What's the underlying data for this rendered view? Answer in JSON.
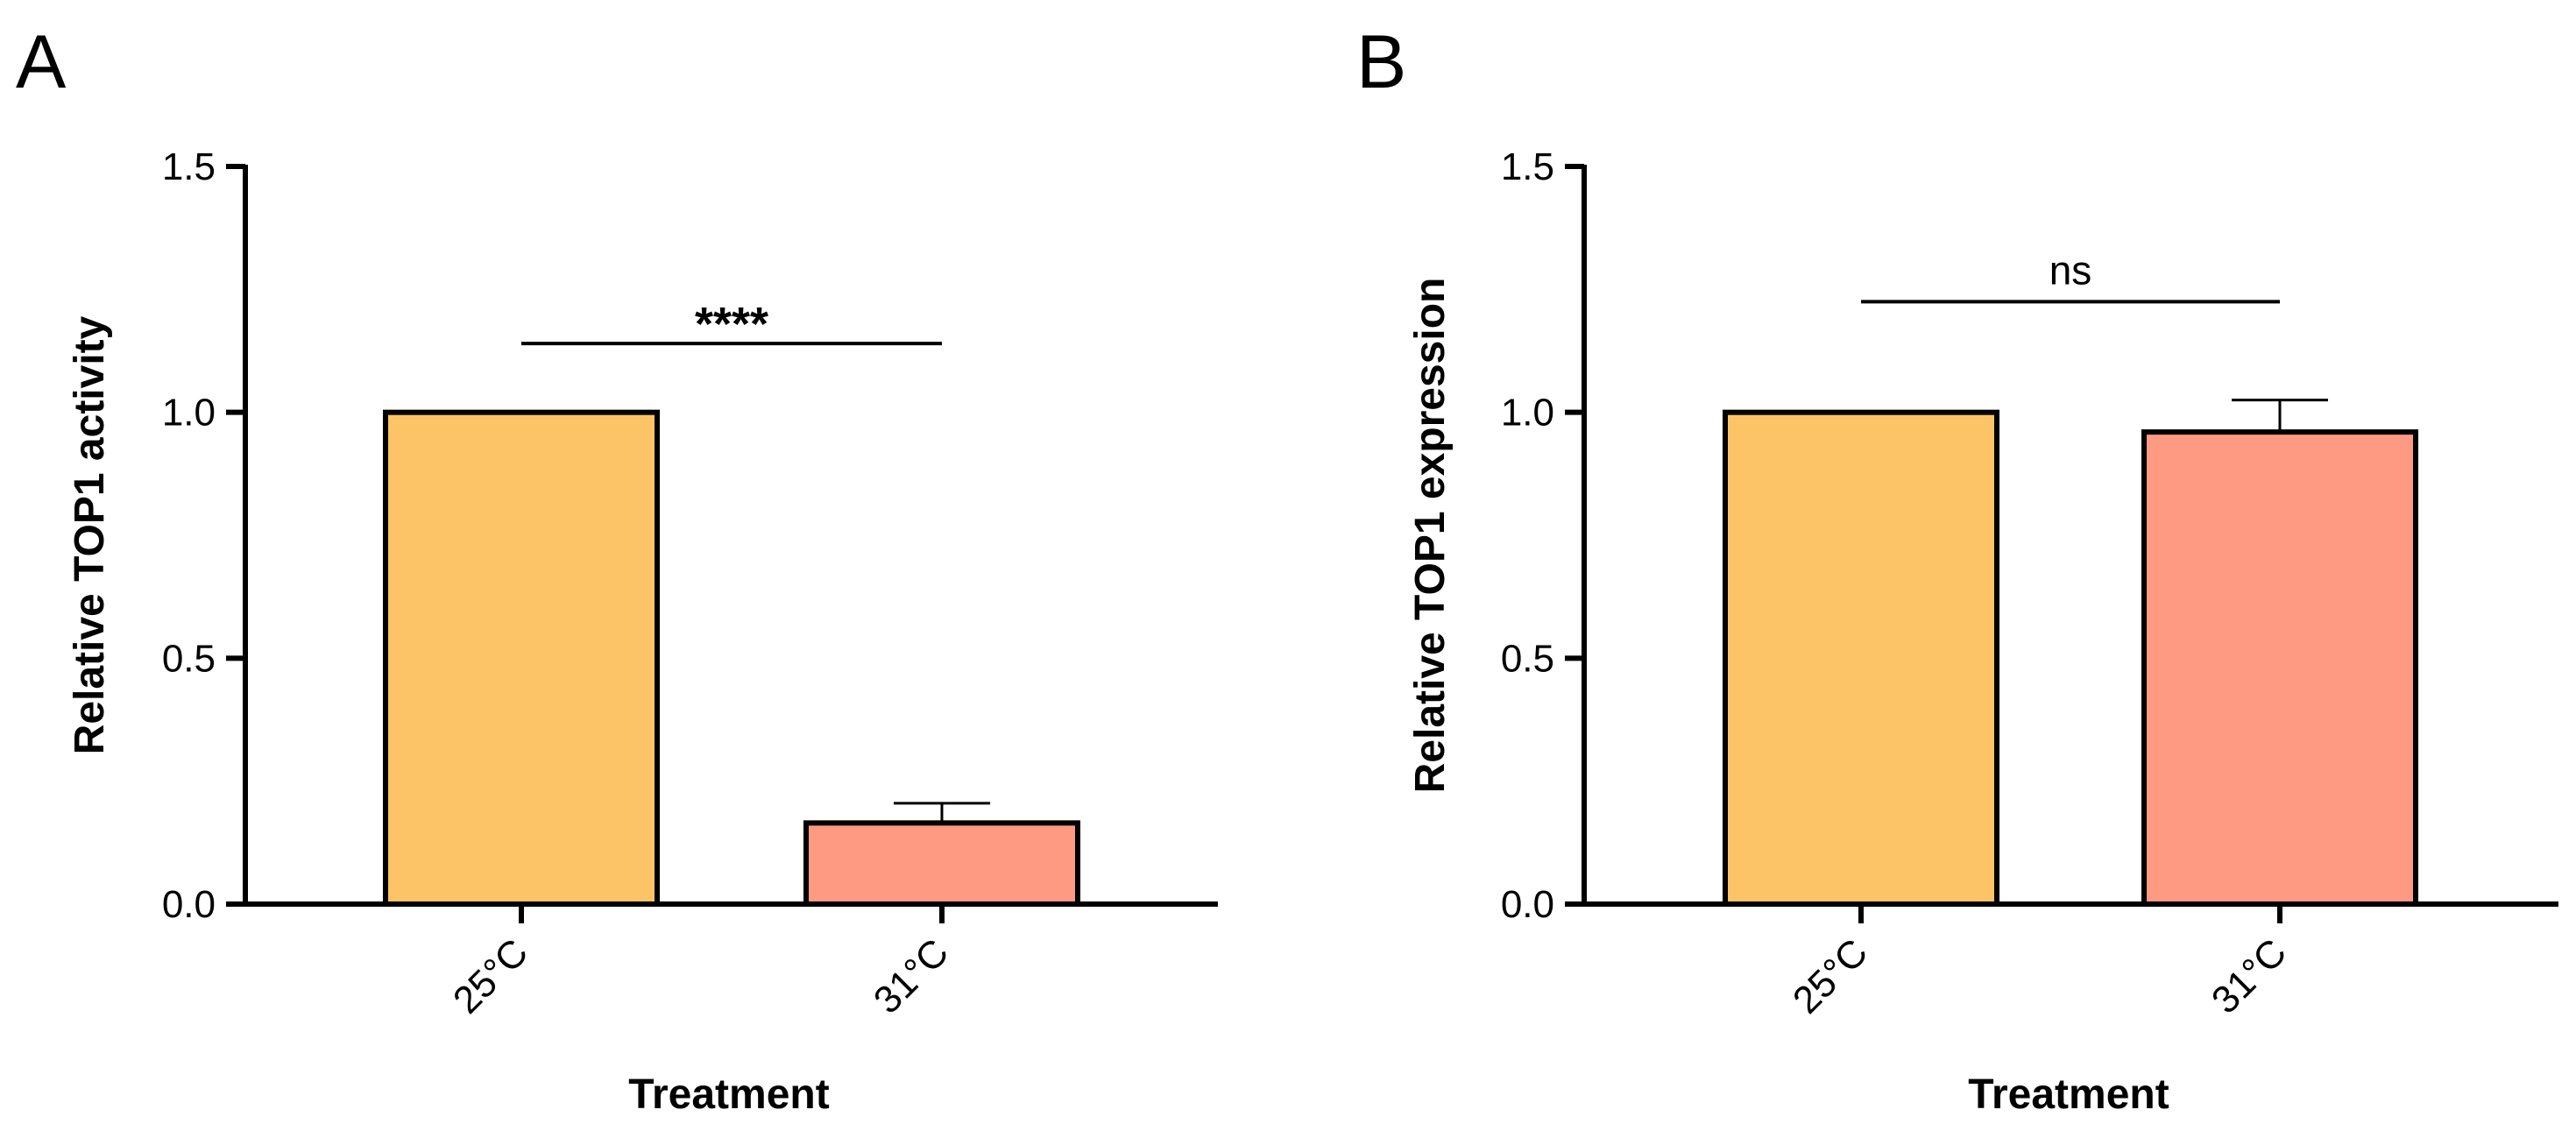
{
  "figure": {
    "panels": [
      "A",
      "B"
    ]
  },
  "colors": {
    "bar_25C": "#FDC467",
    "bar_31C": "#FE9A82",
    "stroke": "#000000"
  },
  "chart_data": [
    {
      "panel": "A",
      "type": "bar",
      "title": "",
      "xlabel": "Treatment",
      "ylabel": "Relative TOP1 activity",
      "categories": [
        "25°C",
        "31°C"
      ],
      "values": [
        1.0,
        0.165
      ],
      "error_upper": [
        null,
        0.04
      ],
      "ylim": [
        0,
        1.5
      ],
      "yticks": [
        0.0,
        0.5,
        1.0,
        1.5
      ],
      "ytick_labels": [
        "0.0",
        "0.5",
        "1.0",
        "1.5"
      ],
      "grid": false,
      "significance": {
        "label": "****",
        "between": [
          "25°C",
          "31°C"
        ],
        "y": 1.14
      }
    },
    {
      "panel": "B",
      "type": "bar",
      "title": "",
      "xlabel": "Treatment",
      "ylabel": "Relative TOP1 expression",
      "categories": [
        "25°C",
        "31°C"
      ],
      "values": [
        1.0,
        0.96
      ],
      "error_upper": [
        null,
        0.065
      ],
      "ylim": [
        0,
        1.5
      ],
      "yticks": [
        0.0,
        0.5,
        1.0,
        1.5
      ],
      "ytick_labels": [
        "0.0",
        "0.5",
        "1.0",
        "1.5"
      ],
      "grid": false,
      "significance": {
        "label": "ns",
        "between": [
          "25°C",
          "31°C"
        ],
        "y": 1.225
      }
    }
  ]
}
